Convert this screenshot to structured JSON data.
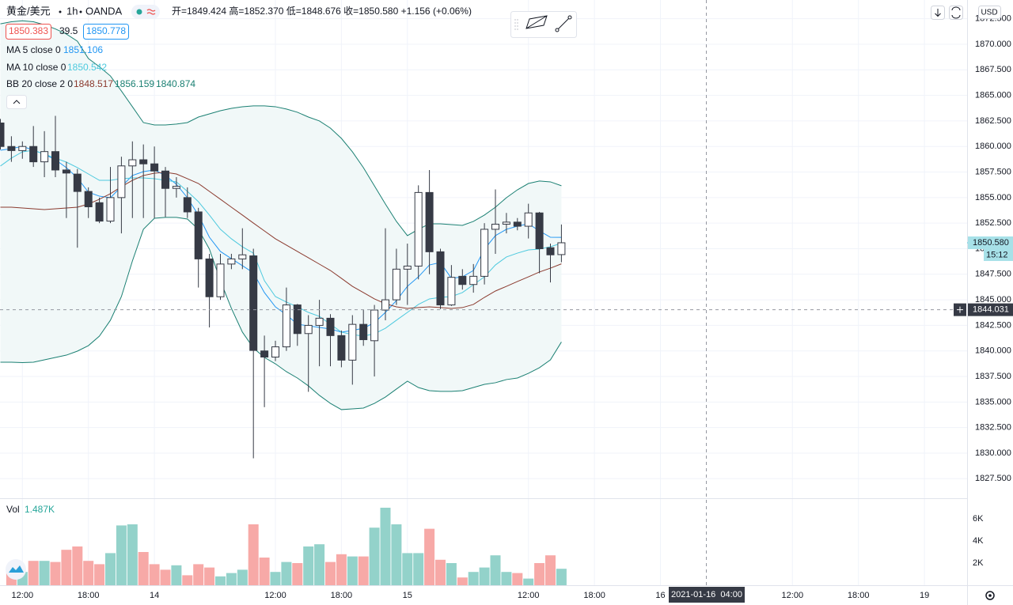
{
  "header": {
    "symbol": "黄金/美元",
    "interval": "1h",
    "source": "OANDA",
    "ohlc": "开=1849.424 高=1852.370 低=1848.676 收=1850.580 +1.156 (+0.06%)",
    "bid": "1850.383",
    "spread": "39.5",
    "ask": "1850.778",
    "currency": "USD"
  },
  "legend": [
    {
      "label": "MA 5 close 0",
      "values": [
        "1851.106"
      ]
    },
    {
      "label": "MA 10 close 0",
      "values": [
        "1850.542"
      ]
    },
    {
      "label": "BB 20 close 2 0",
      "values": [
        "1848.517",
        "1856.159",
        "1840.874"
      ]
    }
  ],
  "volume_legend": {
    "label": "Vol",
    "value": "1.487K"
  },
  "chart_data": {
    "type": "candlestick",
    "categories": [
      "12:00",
      "18:00",
      "14",
      "12:00",
      "18:00",
      "15",
      "12:00",
      "18:00",
      "16",
      "12:00",
      "18:00",
      "19"
    ],
    "open": [
      1862.3,
      1860.0,
      1859.6,
      1860.0,
      1858.5,
      1859.5,
      1857.7,
      1857.3,
      1855.6,
      1854.5,
      1852.7,
      1855.0,
      1858.1,
      1858.7,
      1858.3,
      1857.6,
      1855.9,
      1855.0,
      1853.6,
      1849.0,
      1845.3,
      1848.5,
      1849.0,
      1849.3,
      1840.0,
      1839.4,
      1840.4,
      1844.5,
      1841.7,
      1842.5,
      1843.2,
      1841.5,
      1839.1,
      1842.6,
      1841.0,
      1844.0,
      1845.0,
      1848.0,
      1848.3,
      1855.5,
      1849.7,
      1844.5,
      1847.3,
      1846.5,
      1847.3,
      1851.9,
      1852.4,
      1852.6,
      1852.2,
      1853.5,
      1850.1,
      1849.424
    ],
    "high": [
      1862.7,
      1861.0,
      1860.5,
      1862.0,
      1861.5,
      1863.0,
      1858.5,
      1857.8,
      1856.0,
      1855.0,
      1858.0,
      1859.0,
      1860.5,
      1860.2,
      1860.0,
      1858.0,
      1857.0,
      1856.0,
      1854.0,
      1849.5,
      1849.5,
      1849.5,
      1852.0,
      1850.0,
      1841.5,
      1841.0,
      1846.2,
      1844.6,
      1843.5,
      1845.0,
      1843.6,
      1842.0,
      1843.5,
      1844.0,
      1844.5,
      1852.0,
      1850.0,
      1850.5,
      1856.2,
      1857.7,
      1850.0,
      1848.4,
      1848.0,
      1848.5,
      1852.5,
      1855.8,
      1853.5,
      1853.0,
      1854.4,
      1853.6,
      1850.5,
      1852.37
    ],
    "low": [
      1859.7,
      1858.5,
      1858.8,
      1858.0,
      1857.0,
      1857.0,
      1853.0,
      1850.1,
      1853.0,
      1852.5,
      1852.5,
      1851.5,
      1853.0,
      1853.0,
      1853.0,
      1853.1,
      1855.0,
      1853.0,
      1846.2,
      1842.3,
      1845.0,
      1848.0,
      1848.0,
      1829.5,
      1834.5,
      1839.0,
      1840.0,
      1840.5,
      1836.0,
      1838.5,
      1838.5,
      1838.4,
      1836.7,
      1840.5,
      1837.5,
      1843.0,
      1844.5,
      1844.5,
      1847.0,
      1847.5,
      1844.1,
      1844.4,
      1846.0,
      1845.7,
      1846.5,
      1849.5,
      1851.5,
      1851.8,
      1851.0,
      1847.6,
      1846.7,
      1848.676
    ],
    "close": [
      1860.0,
      1859.6,
      1860.0,
      1858.5,
      1859.5,
      1857.7,
      1857.4,
      1855.6,
      1854.1,
      1852.7,
      1855.0,
      1858.1,
      1858.7,
      1858.3,
      1857.6,
      1855.9,
      1856.1,
      1853.6,
      1849.0,
      1845.3,
      1848.5,
      1849.0,
      1849.4,
      1840.05,
      1839.4,
      1840.4,
      1844.5,
      1841.7,
      1842.5,
      1843.2,
      1841.5,
      1839.1,
      1842.6,
      1841.1,
      1844.0,
      1845.0,
      1848.0,
      1848.3,
      1855.5,
      1849.7,
      1844.5,
      1847.2,
      1846.5,
      1847.3,
      1851.9,
      1852.4,
      1852.6,
      1852.2,
      1853.5,
      1850.0,
      1849.4,
      1850.58
    ],
    "up_color": "#ffffff",
    "down_color": "#363a45",
    "outline_color": "#363a45",
    "lines": [
      {
        "name": "MA 5",
        "color": "#2196f3",
        "values": [
          1859.63,
          1859.79,
          1860.02,
          1859.63,
          1859.25,
          1858.7,
          1857.93,
          1856.92,
          1855.53,
          1855.14,
          1854.99,
          1856.07,
          1857.16,
          1857.54,
          1857.7,
          1857.16,
          1856.31,
          1854.99,
          1853.29,
          1851.12,
          1849.73,
          1849.03,
          1848.34,
          1847.64,
          1845.71,
          1844.31,
          1843.54,
          1842.61,
          1842.46,
          1842.3,
          1842.15,
          1841.84,
          1842.0,
          1842.22,
          1842.77,
          1843.77,
          1844.93,
          1846.32,
          1847.25,
          1848.41,
          1848.65,
          1847.1,
          1847.25,
          1847.87,
          1849.96,
          1851.28,
          1851.9,
          1852.2,
          1852.44,
          1851.74,
          1851.12,
          1851.106
        ]
      },
      {
        "name": "MA 10",
        "color": "#4dc9de",
        "values": [
          1858.09,
          1858.86,
          1859.48,
          1859.63,
          1859.25,
          1858.86,
          1858.47,
          1857.93,
          1857.31,
          1856.69,
          1856.69,
          1856.85,
          1856.92,
          1856.92,
          1856.85,
          1856.69,
          1856.54,
          1855.61,
          1854.6,
          1853.29,
          1851.9,
          1850.97,
          1850.19,
          1849.57,
          1846.87,
          1845.32,
          1844.78,
          1844.31,
          1843.77,
          1843.38,
          1842.61,
          1841.84,
          1841.6,
          1841.45,
          1841.68,
          1842.22,
          1843.0,
          1843.77,
          1844.55,
          1845.09,
          1845.24,
          1845.32,
          1845.71,
          1846.48,
          1847.25,
          1848.41,
          1849.19,
          1849.57,
          1849.88,
          1849.96,
          1850.19,
          1850.542
        ]
      },
      {
        "name": "BB basis",
        "color": "#8b3a2e",
        "values": [
          1854.06,
          1854.06,
          1853.98,
          1853.91,
          1853.83,
          1853.91,
          1853.98,
          1854.06,
          1854.37,
          1854.84,
          1855.38,
          1856.07,
          1856.69,
          1857.16,
          1857.39,
          1857.47,
          1857.31,
          1856.85,
          1856.38,
          1855.61,
          1854.84,
          1854.06,
          1853.29,
          1852.51,
          1851.74,
          1850.97,
          1850.35,
          1849.73,
          1849.11,
          1848.49,
          1847.87,
          1847.1,
          1846.32,
          1845.71,
          1845.09,
          1844.62,
          1844.31,
          1844.16,
          1844.24,
          1844.31,
          1844.24,
          1844.16,
          1844.24,
          1844.55,
          1845.24,
          1845.86,
          1846.32,
          1846.79,
          1847.25,
          1847.72,
          1848.1,
          1848.517
        ]
      },
      {
        "name": "BB upper",
        "color": "#1b8073",
        "values": [
          1872.0,
          1872.2,
          1872.3,
          1872.2,
          1871.9,
          1871.5,
          1871.0,
          1870.3,
          1868.6,
          1867.8,
          1866.9,
          1865.43,
          1863.89,
          1862.34,
          1862.11,
          1862.11,
          1862.19,
          1862.34,
          1862.88,
          1863.19,
          1863.5,
          1863.73,
          1863.89,
          1863.97,
          1863.97,
          1863.89,
          1863.66,
          1863.35,
          1862.88,
          1862.5,
          1861.8,
          1860.79,
          1859.48,
          1857.93,
          1856.15,
          1854.37,
          1852.67,
          1851.28,
          1851.9,
          1852.44,
          1852.44,
          1852.36,
          1852.28,
          1852.67,
          1853.29,
          1854.06,
          1854.99,
          1855.76,
          1856.38,
          1856.62,
          1856.54,
          1856.159
        ]
      },
      {
        "name": "BB lower",
        "color": "#1b8073",
        "values": [
          1838.9,
          1838.9,
          1838.86,
          1838.9,
          1839.13,
          1839.36,
          1839.59,
          1839.98,
          1840.52,
          1841.45,
          1843.0,
          1845.32,
          1848.8,
          1851.9,
          1852.98,
          1853.06,
          1853.06,
          1852.9,
          1851.9,
          1849.96,
          1846.87,
          1844.16,
          1841.84,
          1840.29,
          1839.36,
          1838.74,
          1837.97,
          1837.35,
          1836.58,
          1835.65,
          1834.87,
          1834.26,
          1834.33,
          1834.41,
          1834.87,
          1835.49,
          1836.27,
          1837.04,
          1836.42,
          1836.11,
          1836.04,
          1836.04,
          1836.11,
          1836.42,
          1836.73,
          1836.89,
          1837.2,
          1837.35,
          1837.81,
          1838.36,
          1839.13,
          1840.874
        ]
      }
    ],
    "band_fill": "#f1f8f8",
    "volume": [
      null,
      1700,
      1200,
      2200,
      2200,
      2100,
      3200,
      3500,
      2200,
      1900,
      2900,
      5400,
      5500,
      3000,
      1900,
      1400,
      1800,
      900,
      1900,
      1600,
      800,
      1100,
      1400,
      5500,
      2500,
      1200,
      2100,
      2000,
      3500,
      3700,
      2100,
      2800,
      2600,
      2600,
      5200,
      7000,
      5500,
      2900,
      2900,
      5100,
      2300,
      2000,
      700,
      1200,
      1600,
      2700,
      1200,
      1100,
      600,
      2000,
      2700,
      1487
    ],
    "volume_up_color": "#93d2ca",
    "volume_down_color": "#f7a9a7",
    "ylim": [
      1825.59,
      1874.33
    ],
    "yticks": [
      {
        "value": 1872.5,
        "label": "1872.500"
      },
      {
        "value": 1870,
        "label": "1870.000"
      },
      {
        "value": 1867.5,
        "label": "1867.500"
      },
      {
        "value": 1865,
        "label": "1865.000"
      },
      {
        "value": 1862.5,
        "label": "1862.500"
      },
      {
        "value": 1860,
        "label": "1860.000"
      },
      {
        "value": 1857.5,
        "label": "1857.500"
      },
      {
        "value": 1855,
        "label": "1855.000"
      },
      {
        "value": 1852.5,
        "label": "1852.500"
      },
      {
        "value": 1850,
        "label": "1850.000"
      },
      {
        "value": 1847.5,
        "label": "1847.500"
      },
      {
        "value": 1845,
        "label": "1845.000"
      },
      {
        "value": 1842.5,
        "label": "1842.500"
      },
      {
        "value": 1840,
        "label": "1840.000"
      },
      {
        "value": 1837.5,
        "label": "1837.500"
      },
      {
        "value": 1835,
        "label": "1835.000"
      },
      {
        "value": 1832.5,
        "label": "1832.500"
      },
      {
        "value": 1830,
        "label": "1830.000"
      },
      {
        "value": 1827.5,
        "label": "1827.500"
      }
    ],
    "vlim": [
      0,
      7714
    ],
    "vticks": [
      {
        "value": 2000,
        "label": "2K"
      },
      {
        "value": 4000,
        "label": "4K"
      },
      {
        "value": 6000,
        "label": "6K"
      }
    ],
    "last_price_label": "1850.580",
    "countdown": "15:12",
    "crosshair": {
      "price": 1844.031,
      "time": "2021-01-16  04:00"
    },
    "grid": true
  }
}
